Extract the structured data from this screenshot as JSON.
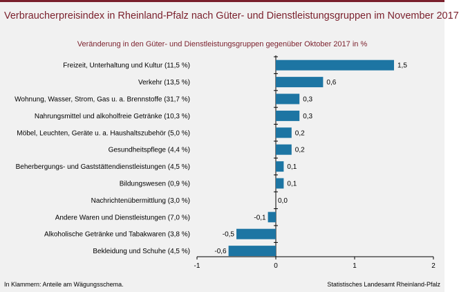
{
  "header": {
    "title": "Verbraucherpreisindex in Rheinland-Pfalz nach Güter- und Dienstleistungsgruppen im November 2017"
  },
  "colors": {
    "accent": "#7a1f2b",
    "bar": "#1d75a3",
    "background": "#f1f1f1"
  },
  "footer": {
    "left": "In Klammern: Anteile am Wägungsschema.",
    "right": "Statistisches Landesamt Rheinland-Pfalz"
  },
  "chart_data": {
    "type": "bar",
    "orientation": "horizontal",
    "title": "Veränderung in den Güter- und Dienstleistungsgruppen gegenüber Oktober 2017 in %",
    "categories": [
      "Freizeit, Unterhaltung und Kultur (11,5 %)",
      "Verkehr (13,5 %)",
      "Wohnung, Wasser, Strom, Gas u. a. Brennstoffe (31,7 %)",
      "Nahrungsmittel und alkoholfreie Getränke (10,3 %)",
      "Möbel, Leuchten, Geräte u. a. Haushaltszubehör (5,0 %)",
      "Gesundheitspflege (4,4 %)",
      "Beherbergungs- und Gaststättendienstleistungen (4,5 %)",
      "Bildungswesen (0,9 %)",
      "Nachrichtenübermittlung (3,0 %)",
      "Andere Waren und Dienstleistungen (7,0 %)",
      "Alkoholische Getränke und Tabakwaren (3,8 %)",
      "Bekleidung und Schuhe (4,5 %)"
    ],
    "values": [
      1.5,
      0.6,
      0.3,
      0.3,
      0.2,
      0.2,
      0.1,
      0.1,
      0.0,
      -0.1,
      -0.5,
      -0.6
    ],
    "value_labels": [
      "1,5",
      "0,6",
      "0,3",
      "0,3",
      "0,2",
      "0,2",
      "0,1",
      "0,1",
      "0,0",
      "-0,1",
      "-0,5",
      "-0,6"
    ],
    "xlim": [
      -1,
      2
    ],
    "xticks": [
      -1,
      0,
      1,
      2
    ],
    "xtick_labels": [
      "-1",
      "0",
      "1",
      "2"
    ],
    "grid": false,
    "legend": "none"
  }
}
